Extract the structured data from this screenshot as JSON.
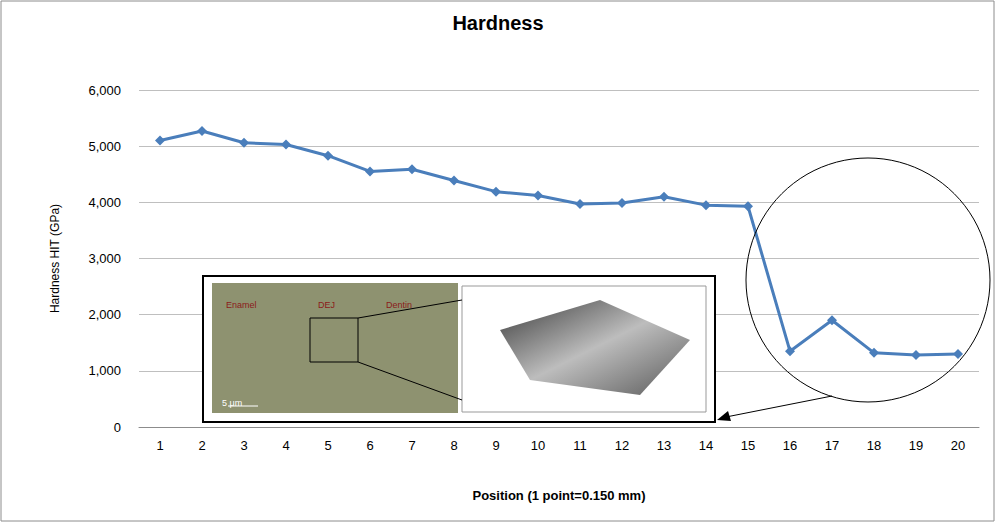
{
  "chart_data": {
    "type": "line",
    "title": "Hardness",
    "x_label": "Position (1 point=0.150 mm)",
    "y_label": "Hardness HIT (GPa)",
    "categories": [
      "1",
      "2",
      "3",
      "4",
      "5",
      "6",
      "7",
      "8",
      "9",
      "10",
      "11",
      "12",
      "13",
      "14",
      "15",
      "16",
      "17",
      "18",
      "19",
      "20"
    ],
    "series": [
      {
        "name": "Hardness",
        "color": "#4a7ebb",
        "marker": "diamond",
        "values": [
          5100,
          5270,
          5060,
          5030,
          4830,
          4550,
          4590,
          4390,
          4190,
          4120,
          3970,
          3990,
          4100,
          3950,
          3930,
          1350,
          1900,
          1320,
          1280,
          1300
        ]
      }
    ],
    "ylim": [
      0,
      6000
    ],
    "yticks": [
      0,
      1000,
      2000,
      3000,
      4000,
      5000,
      6000
    ],
    "grid": true,
    "annotations": [
      "Enamel",
      "DEJ",
      "Dentin",
      "5 μm"
    ]
  }
}
